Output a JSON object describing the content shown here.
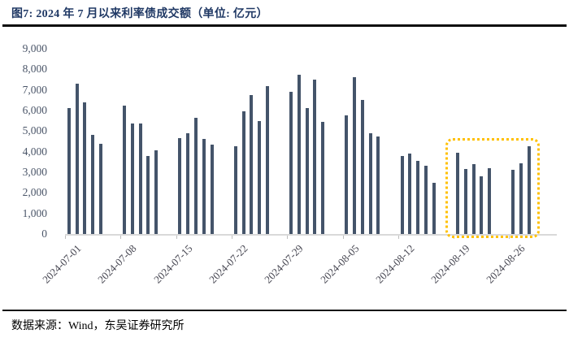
{
  "figure": {
    "title": "图7:  2024 年 7 月以来利率债成交额（单位:  亿元）",
    "source": "数据来源：Wind，东吴证券研究所"
  },
  "chart_data": {
    "type": "bar",
    "title": "2024年7月以来利率债成交额",
    "unit": "亿元",
    "ylim": [
      0,
      9000
    ],
    "ytick_step": 1000,
    "grid": false,
    "legend": null,
    "bar_color": "#44546A",
    "axis_color": "#D9D9D9",
    "highlight_color": "#FFC000",
    "x_tick_labels": [
      "2024-07-01",
      "2024-07-08",
      "2024-07-15",
      "2024-07-22",
      "2024-07-29",
      "2024-08-05",
      "2024-08-12",
      "2024-08-19",
      "2024-08-26"
    ],
    "points": [
      {
        "date": "2024-07-01",
        "value": 6100
      },
      {
        "date": "2024-07-02",
        "value": 7300
      },
      {
        "date": "2024-07-03",
        "value": 6400
      },
      {
        "date": "2024-07-04",
        "value": 4800
      },
      {
        "date": "2024-07-05",
        "value": 4400
      },
      {
        "date": "2024-07-08",
        "value": 6250
      },
      {
        "date": "2024-07-09",
        "value": 5350
      },
      {
        "date": "2024-07-10",
        "value": 5350
      },
      {
        "date": "2024-07-11",
        "value": 3800
      },
      {
        "date": "2024-07-12",
        "value": 4050
      },
      {
        "date": "2024-07-15",
        "value": 4650
      },
      {
        "date": "2024-07-16",
        "value": 4900
      },
      {
        "date": "2024-07-17",
        "value": 5650
      },
      {
        "date": "2024-07-18",
        "value": 4600
      },
      {
        "date": "2024-07-19",
        "value": 4350
      },
      {
        "date": "2024-07-22",
        "value": 4250
      },
      {
        "date": "2024-07-23",
        "value": 5950
      },
      {
        "date": "2024-07-24",
        "value": 6750
      },
      {
        "date": "2024-07-25",
        "value": 5500
      },
      {
        "date": "2024-07-26",
        "value": 7200
      },
      {
        "date": "2024-07-29",
        "value": 6900
      },
      {
        "date": "2024-07-30",
        "value": 7750
      },
      {
        "date": "2024-07-31",
        "value": 6100
      },
      {
        "date": "2024-08-01",
        "value": 7500
      },
      {
        "date": "2024-08-02",
        "value": 5450
      },
      {
        "date": "2024-08-05",
        "value": 5750
      },
      {
        "date": "2024-08-06",
        "value": 7600
      },
      {
        "date": "2024-08-07",
        "value": 6500
      },
      {
        "date": "2024-08-08",
        "value": 4900
      },
      {
        "date": "2024-08-09",
        "value": 4750
      },
      {
        "date": "2024-08-12",
        "value": 3800
      },
      {
        "date": "2024-08-13",
        "value": 3900
      },
      {
        "date": "2024-08-14",
        "value": 3550
      },
      {
        "date": "2024-08-15",
        "value": 3300
      },
      {
        "date": "2024-08-16",
        "value": 2500
      },
      {
        "date": "2024-08-19",
        "value": 3950
      },
      {
        "date": "2024-08-20",
        "value": 3150
      },
      {
        "date": "2024-08-21",
        "value": 3400
      },
      {
        "date": "2024-08-22",
        "value": 2800
      },
      {
        "date": "2024-08-23",
        "value": 3200
      },
      {
        "date": "2024-08-26",
        "value": 3100
      },
      {
        "date": "2024-08-27",
        "value": 3450
      },
      {
        "date": "2024-08-28",
        "value": 4250
      }
    ],
    "highlight_annotation": {
      "from": "2024-08-19",
      "to": "2024-08-28",
      "style": "dotted-box"
    }
  }
}
